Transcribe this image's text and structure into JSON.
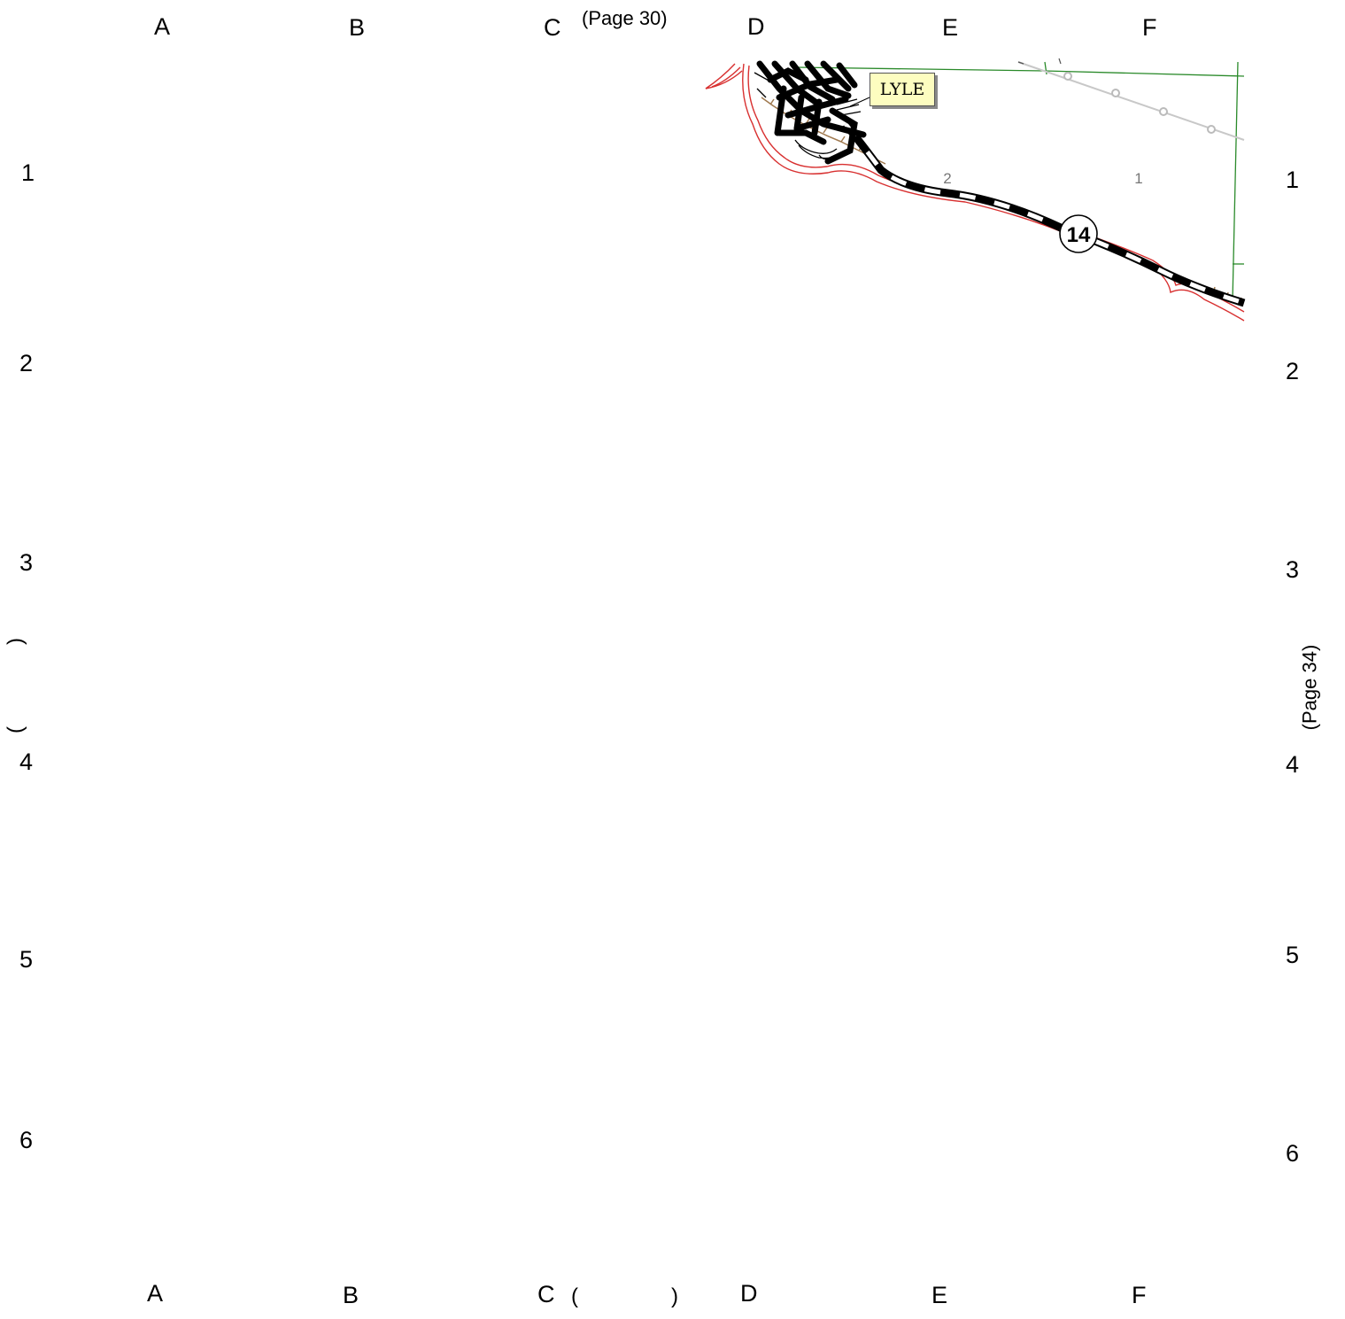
{
  "grid": {
    "columns": [
      "A",
      "B",
      "C",
      "D",
      "E",
      "F"
    ],
    "rows": [
      "1",
      "2",
      "3",
      "4",
      "5",
      "6"
    ]
  },
  "adjacent_pages": {
    "top": "(Page 30)",
    "right": "(Page 34)",
    "bottom_open": "(",
    "bottom_close": ")",
    "left_open": "(",
    "left_close": ")"
  },
  "map": {
    "town_label": "LYLE",
    "route_shield": "14",
    "section_labels": [
      "2",
      "1"
    ],
    "colors": {
      "highway": "#000000",
      "river_boundary": "#d83030",
      "section_lines": "#2a8a2a",
      "power_line": "#c8c8c8",
      "railroad": "#a07a50",
      "town_label_fill": "#fdfdc0"
    }
  }
}
